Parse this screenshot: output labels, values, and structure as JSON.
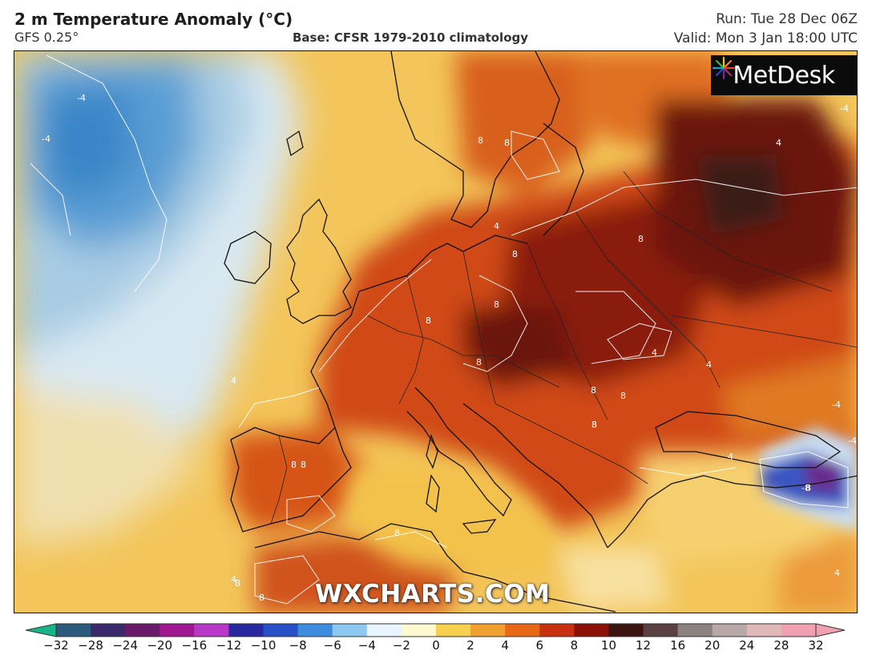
{
  "header": {
    "title": "2 m Temperature Anomaly (°C)",
    "model": "GFS 0.25°",
    "base": "Base: CFSR 1979-2010 climatology",
    "run": "Run: Tue 28 Dec 06Z",
    "valid": "Valid: Mon 3 Jan 18:00 UTC"
  },
  "logo": {
    "text": "MetDesk",
    "icon": "sunburst-logo-icon"
  },
  "watermark": "WXCHARTS.COM",
  "map": {
    "region": "Europe",
    "contour_labels": [
      "-4",
      "-4",
      "-4",
      "4",
      "4",
      "4",
      "8",
      "8",
      "8",
      "8",
      "8",
      "8",
      "8",
      "8",
      "8",
      "8",
      "8",
      "8",
      "8",
      "4",
      "4",
      "4",
      "8",
      "8",
      "-8",
      "-4",
      "-4",
      "4",
      "8",
      "8",
      "4"
    ]
  },
  "colorbar": {
    "ticks": [
      "−32",
      "−28",
      "−24",
      "−20",
      "−16",
      "−12",
      "−10",
      "−8",
      "−6",
      "−4",
      "−2",
      "0",
      "2",
      "4",
      "6",
      "8",
      "10",
      "12",
      "16",
      "20",
      "24",
      "28",
      "32"
    ],
    "colors": [
      "#18b48c",
      "#2c5a7c",
      "#3a2a6c",
      "#6a1a6a",
      "#a01890",
      "#b838c8",
      "#2828a0",
      "#2850c8",
      "#3c8ce0",
      "#8cc8f0",
      "#e8f4ff",
      "#fff8d0",
      "#f8d050",
      "#f0a030",
      "#e86818",
      "#c83010",
      "#8c1008",
      "#3c1410",
      "#5a4040",
      "#8c8080",
      "#b8a8a8",
      "#e0b8b8",
      "#f0a0b0"
    ]
  }
}
